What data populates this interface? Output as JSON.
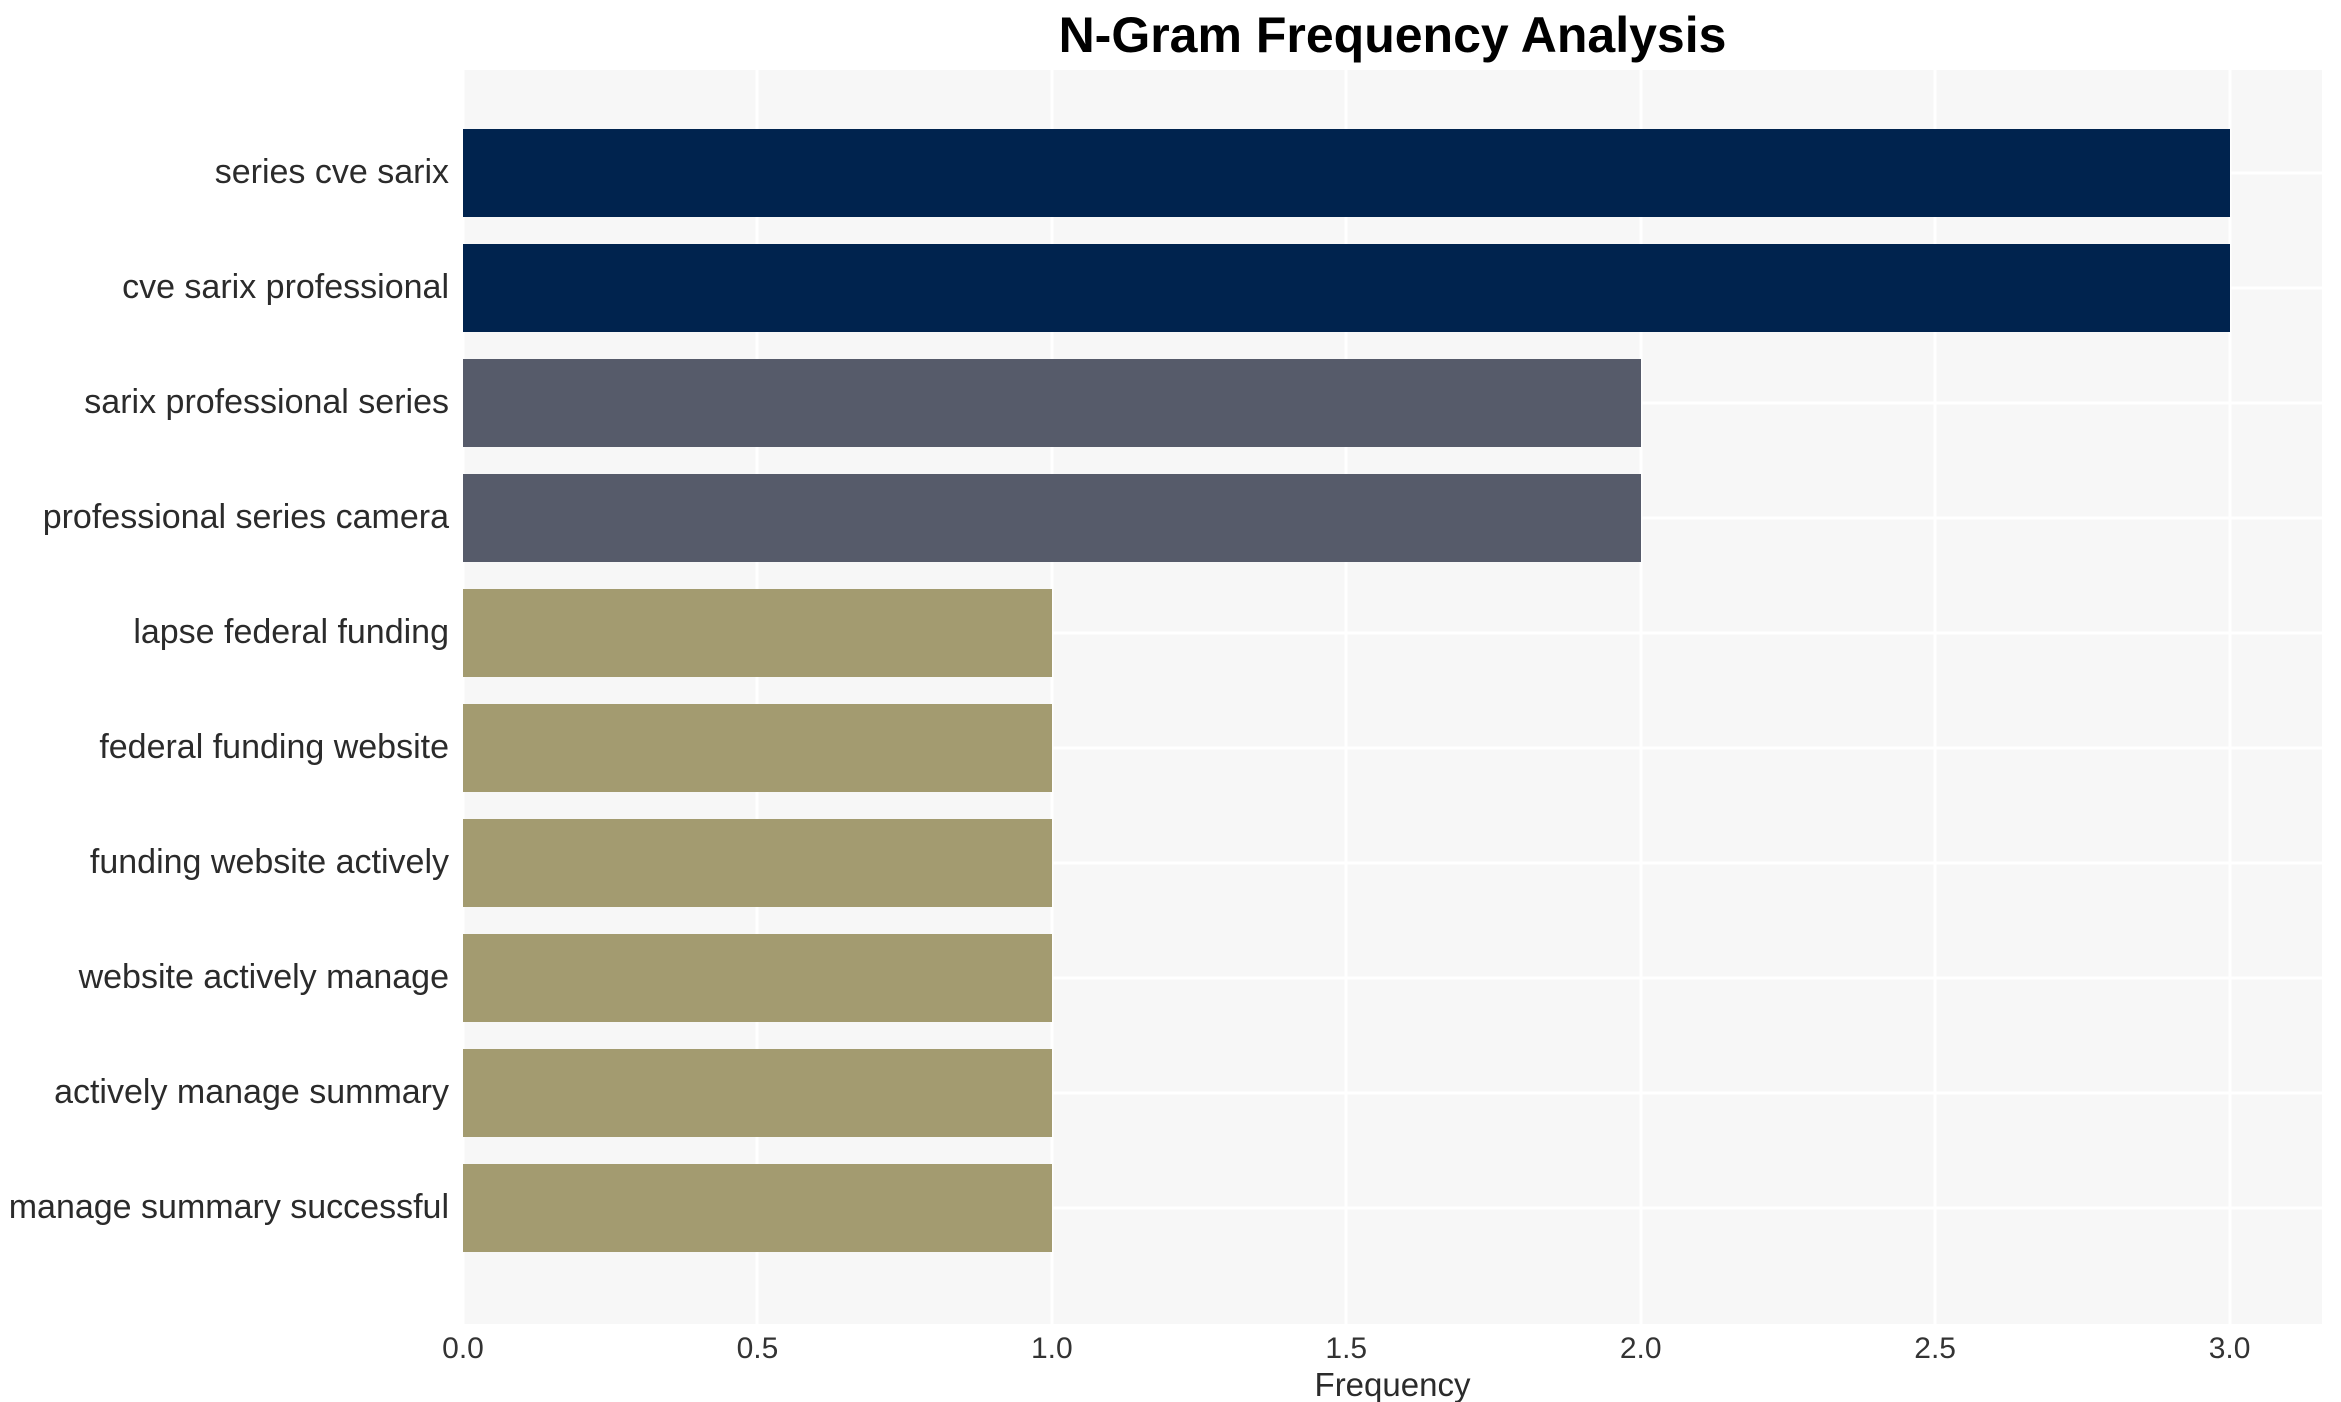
{
  "chart_data": {
    "type": "bar",
    "orientation": "horizontal",
    "title": "N-Gram Frequency Analysis",
    "xlabel": "Frequency",
    "ylabel": "",
    "categories": [
      "series cve sarix",
      "cve sarix professional",
      "sarix professional series",
      "professional series camera",
      "lapse federal funding",
      "federal funding website",
      "funding website actively",
      "website actively manage",
      "actively manage summary",
      "manage summary successful"
    ],
    "values": [
      3,
      3,
      2,
      2,
      1,
      1,
      1,
      1,
      1,
      1
    ],
    "colors": [
      "#00234E",
      "#00234E",
      "#565B6A",
      "#565B6A",
      "#A39B70",
      "#A39B70",
      "#A39B70",
      "#A39B70",
      "#A39B70",
      "#A39B70"
    ],
    "palette_by_value": {
      "3": "#00234E",
      "2": "#565B6A",
      "1": "#A39B70"
    },
    "xticks": [
      "0.0",
      "0.5",
      "1.0",
      "1.5",
      "2.0",
      "2.5",
      "3.0"
    ],
    "xtick_values": [
      0,
      0.5,
      1,
      1.5,
      2,
      2.5,
      3
    ],
    "xlim": [
      0,
      3.157
    ],
    "grid": true,
    "grid_color": "#FFFFFF",
    "plot_background": "#F7F7F7",
    "legend": false
  }
}
